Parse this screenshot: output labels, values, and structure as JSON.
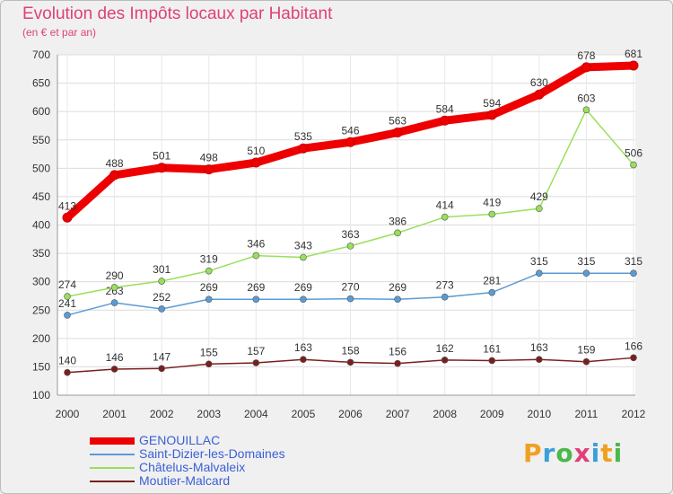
{
  "header": {
    "title": "Evolution des Impôts locaux par Habitant",
    "subtitle": "(en € et par an)"
  },
  "brand": {
    "letters": [
      "P",
      "r",
      "o",
      "x",
      "i",
      "t",
      "i"
    ],
    "colors": [
      "#f0a020",
      "#3ca0d8",
      "#4ab84a",
      "#e0407a",
      "#3ca0d8",
      "#f0a020",
      "#4ab84a"
    ]
  },
  "chart_data": {
    "type": "line",
    "x": [
      2000,
      2001,
      2002,
      2003,
      2004,
      2005,
      2006,
      2007,
      2008,
      2009,
      2010,
      2011,
      2012
    ],
    "ylim": [
      100,
      700
    ],
    "yticks": [
      100,
      150,
      200,
      250,
      300,
      350,
      400,
      450,
      500,
      550,
      600,
      650,
      700
    ],
    "grid": true,
    "legend_position": "bottom-left",
    "series": [
      {
        "name": "GENOUILLAC",
        "color": "#ee0000",
        "emphasis": true,
        "values": [
          413,
          488,
          501,
          498,
          510,
          535,
          546,
          563,
          584,
          594,
          630,
          678,
          681
        ]
      },
      {
        "name": "Saint-Dizier-les-Domaines",
        "color": "#5b9bd5",
        "emphasis": false,
        "values": [
          241,
          263,
          252,
          269,
          269,
          269,
          270,
          269,
          273,
          281,
          315,
          315,
          315
        ]
      },
      {
        "name": "Châtelus-Malvaleix",
        "color": "#99e05a",
        "emphasis": false,
        "values": [
          274,
          290,
          301,
          319,
          346,
          343,
          363,
          386,
          414,
          419,
          429,
          603,
          506
        ]
      },
      {
        "name": "Moutier-Malcard",
        "color": "#7a1f1f",
        "emphasis": false,
        "values": [
          140,
          146,
          147,
          155,
          157,
          163,
          158,
          156,
          162,
          161,
          163,
          159,
          166
        ]
      }
    ]
  }
}
